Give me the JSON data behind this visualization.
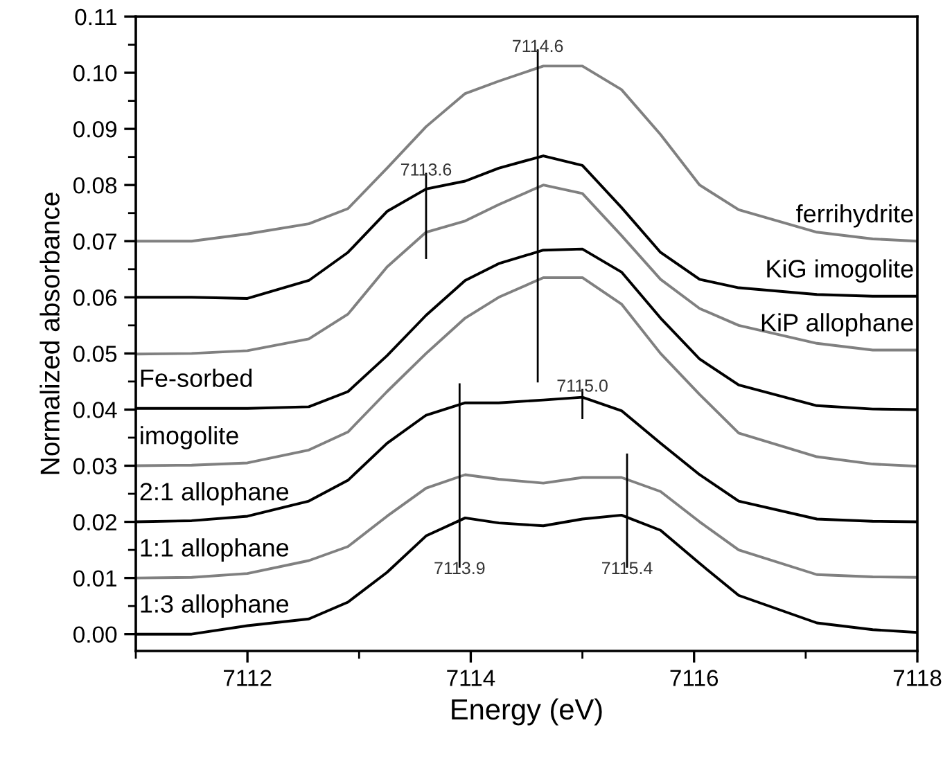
{
  "chart_data": {
    "type": "line",
    "xlabel": "Energy (eV)",
    "ylabel": "Normalized absorbance",
    "xlim": [
      7111,
      7118
    ],
    "xticks": [
      7112,
      7114,
      7116,
      7118
    ],
    "ylim": [
      -0.003,
      0.11
    ],
    "yticks": [
      {
        "value": 0,
        "label": "0.00"
      },
      {
        "value": 0.01,
        "label": "0.01"
      },
      {
        "value": 0.02,
        "label": "0.02"
      },
      {
        "value": 0.03,
        "label": "0.03"
      },
      {
        "value": 0.04,
        "label": "0.04"
      },
      {
        "value": 0.05,
        "label": "0.05"
      },
      {
        "value": 0.06,
        "label": "0.06"
      },
      {
        "value": 0.07,
        "label": "0.07"
      },
      {
        "value": 0.08,
        "label": "0.08"
      },
      {
        "value": 0.09,
        "label": "0.09"
      },
      {
        "value": 0.1,
        "label": "0.10"
      },
      {
        "value": 0.11,
        "label": "0.11"
      }
    ],
    "grid": false,
    "legend": false,
    "marker": "none",
    "line_style": "solid",
    "x": [
      7111,
      7111.5,
      7112,
      7112.55,
      7112.9,
      7113.25,
      7113.6,
      7113.95,
      7114.25,
      7114.65,
      7115,
      7115.35,
      7115.7,
      7116.05,
      7116.4,
      7117.1,
      7117.6,
      7118
    ],
    "series": [
      {
        "name": "1:3 allophane",
        "color": "#000000",
        "values": [
          0,
          0,
          0.0015,
          0.0027,
          0.0057,
          0.011,
          0.0175,
          0.0207,
          0.0198,
          0.0193,
          0.0205,
          0.0212,
          0.0185,
          0.0126,
          0.0069,
          0.002,
          0.0008,
          0.0003
        ]
      },
      {
        "name": "1:1 allophane",
        "color": "#808080",
        "values": [
          0.01,
          0.0101,
          0.0108,
          0.0131,
          0.0156,
          0.021,
          0.026,
          0.0284,
          0.0276,
          0.0269,
          0.0279,
          0.0279,
          0.0254,
          0.02,
          0.015,
          0.0106,
          0.0102,
          0.0101
        ]
      },
      {
        "name": "2:1 allophane",
        "color": "#000000",
        "values": [
          0.02,
          0.0202,
          0.021,
          0.0237,
          0.0274,
          0.034,
          0.039,
          0.0412,
          0.0412,
          0.0417,
          0.0422,
          0.0398,
          0.034,
          0.0284,
          0.0237,
          0.0205,
          0.0201,
          0.02
        ]
      },
      {
        "name": "imogolite",
        "color": "#808080",
        "values": [
          0.03,
          0.0301,
          0.0305,
          0.0328,
          0.036,
          0.0432,
          0.05,
          0.0563,
          0.06,
          0.0635,
          0.0635,
          0.0588,
          0.05,
          0.0427,
          0.0358,
          0.0316,
          0.0303,
          0.0299
        ]
      },
      {
        "name": "Fe-sorbed",
        "color": "#000000",
        "values": [
          0.0402,
          0.0402,
          0.0402,
          0.0405,
          0.0432,
          0.0496,
          0.0568,
          0.063,
          0.066,
          0.0684,
          0.0686,
          0.0645,
          0.0563,
          0.049,
          0.0444,
          0.0407,
          0.0401,
          0.04
        ]
      },
      {
        "name": "KiP allophane",
        "color": "#808080",
        "values": [
          0.0499,
          0.05,
          0.0505,
          0.0526,
          0.057,
          0.0654,
          0.0716,
          0.0736,
          0.0765,
          0.08,
          0.0785,
          0.071,
          0.0632,
          0.058,
          0.055,
          0.0518,
          0.0506,
          0.0506
        ]
      },
      {
        "name": "KiG imogolite",
        "color": "#000000",
        "values": [
          0.06,
          0.06,
          0.0598,
          0.063,
          0.068,
          0.0753,
          0.0793,
          0.0807,
          0.083,
          0.0852,
          0.0835,
          0.076,
          0.068,
          0.0632,
          0.0617,
          0.0605,
          0.0602,
          0.0602
        ]
      },
      {
        "name": "ferrihydrite",
        "color": "#808080",
        "values": [
          0.07,
          0.07,
          0.0713,
          0.0731,
          0.0758,
          0.083,
          0.0904,
          0.0963,
          0.0985,
          0.1012,
          0.1012,
          0.097,
          0.089,
          0.08,
          0.0756,
          0.0716,
          0.0704,
          0.07
        ]
      },
      {
        "color": "#000000",
        "x": [
          7114.6,
          7114.6
        ],
        "values": [
          0.045,
          0.104
        ]
      },
      {
        "color": "#000000",
        "x": [
          7113.6,
          7113.6
        ],
        "values": [
          0.067,
          0.082
        ]
      },
      {
        "color": "#000000",
        "x": [
          7115.0,
          7115.0
        ],
        "values": [
          0.0385,
          0.0435
        ]
      },
      {
        "color": "#000000",
        "x": [
          7113.9,
          7113.9
        ],
        "values": [
          0.012,
          0.0445
        ]
      },
      {
        "color": "#000000",
        "x": [
          7115.4,
          7115.4
        ],
        "values": [
          0.012,
          0.032
        ]
      }
    ],
    "annotations": [
      {
        "text": "7114.6",
        "x": 7114.6,
        "y": 0.1045
      },
      {
        "text": "7113.6",
        "x": 7113.6,
        "y": 0.0825
      },
      {
        "text": "7115.0",
        "x": 7115.0,
        "y": 0.044
      },
      {
        "text": "7113.9",
        "x": 7113.9,
        "y": 0.0115
      },
      {
        "text": "7115.4",
        "x": 7115.4,
        "y": 0.0115
      }
    ]
  }
}
